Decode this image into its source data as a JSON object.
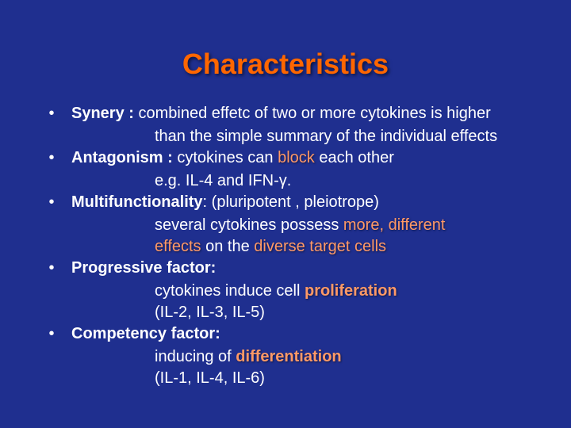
{
  "title": "Characteristics",
  "items": [
    {
      "term": "Synery : ",
      "def": "combined effetc of two or more cytokines is higher",
      "cont": [
        "than the simple summary of the individual effects"
      ]
    },
    {
      "term": "Antagonism : ",
      "def_pre": "cytokines can ",
      "hl1": "block",
      "def_post": " each other",
      "cont": [
        "e.g. IL-4 and IFN-γ."
      ]
    },
    {
      "term": "Multifunctionality",
      "def": ": (pluripotent , pleiotrope)",
      "line2_pre": "several cytokines possess ",
      "line2_hl": "more, different",
      "line3_hl": "effects",
      "line3_mid": " on the ",
      "line3_hl2": "diverse target cells"
    },
    {
      "term": "Progressive factor:",
      "line2_pre": "cytokines induce cell ",
      "line2_hl": "proliferation",
      "cont": [
        " (IL-2, IL-3, IL-5)"
      ]
    },
    {
      "term": "Competency factor:",
      "line2_pre": "inducing of ",
      "line2_hl": "differentiation",
      "cont": [
        "(IL-1, IL-4, IL-6)"
      ]
    }
  ],
  "colors": {
    "background": "#1f2f8f",
    "title": "#ff6600",
    "text": "#ffffff",
    "highlight": "#ff9966"
  }
}
